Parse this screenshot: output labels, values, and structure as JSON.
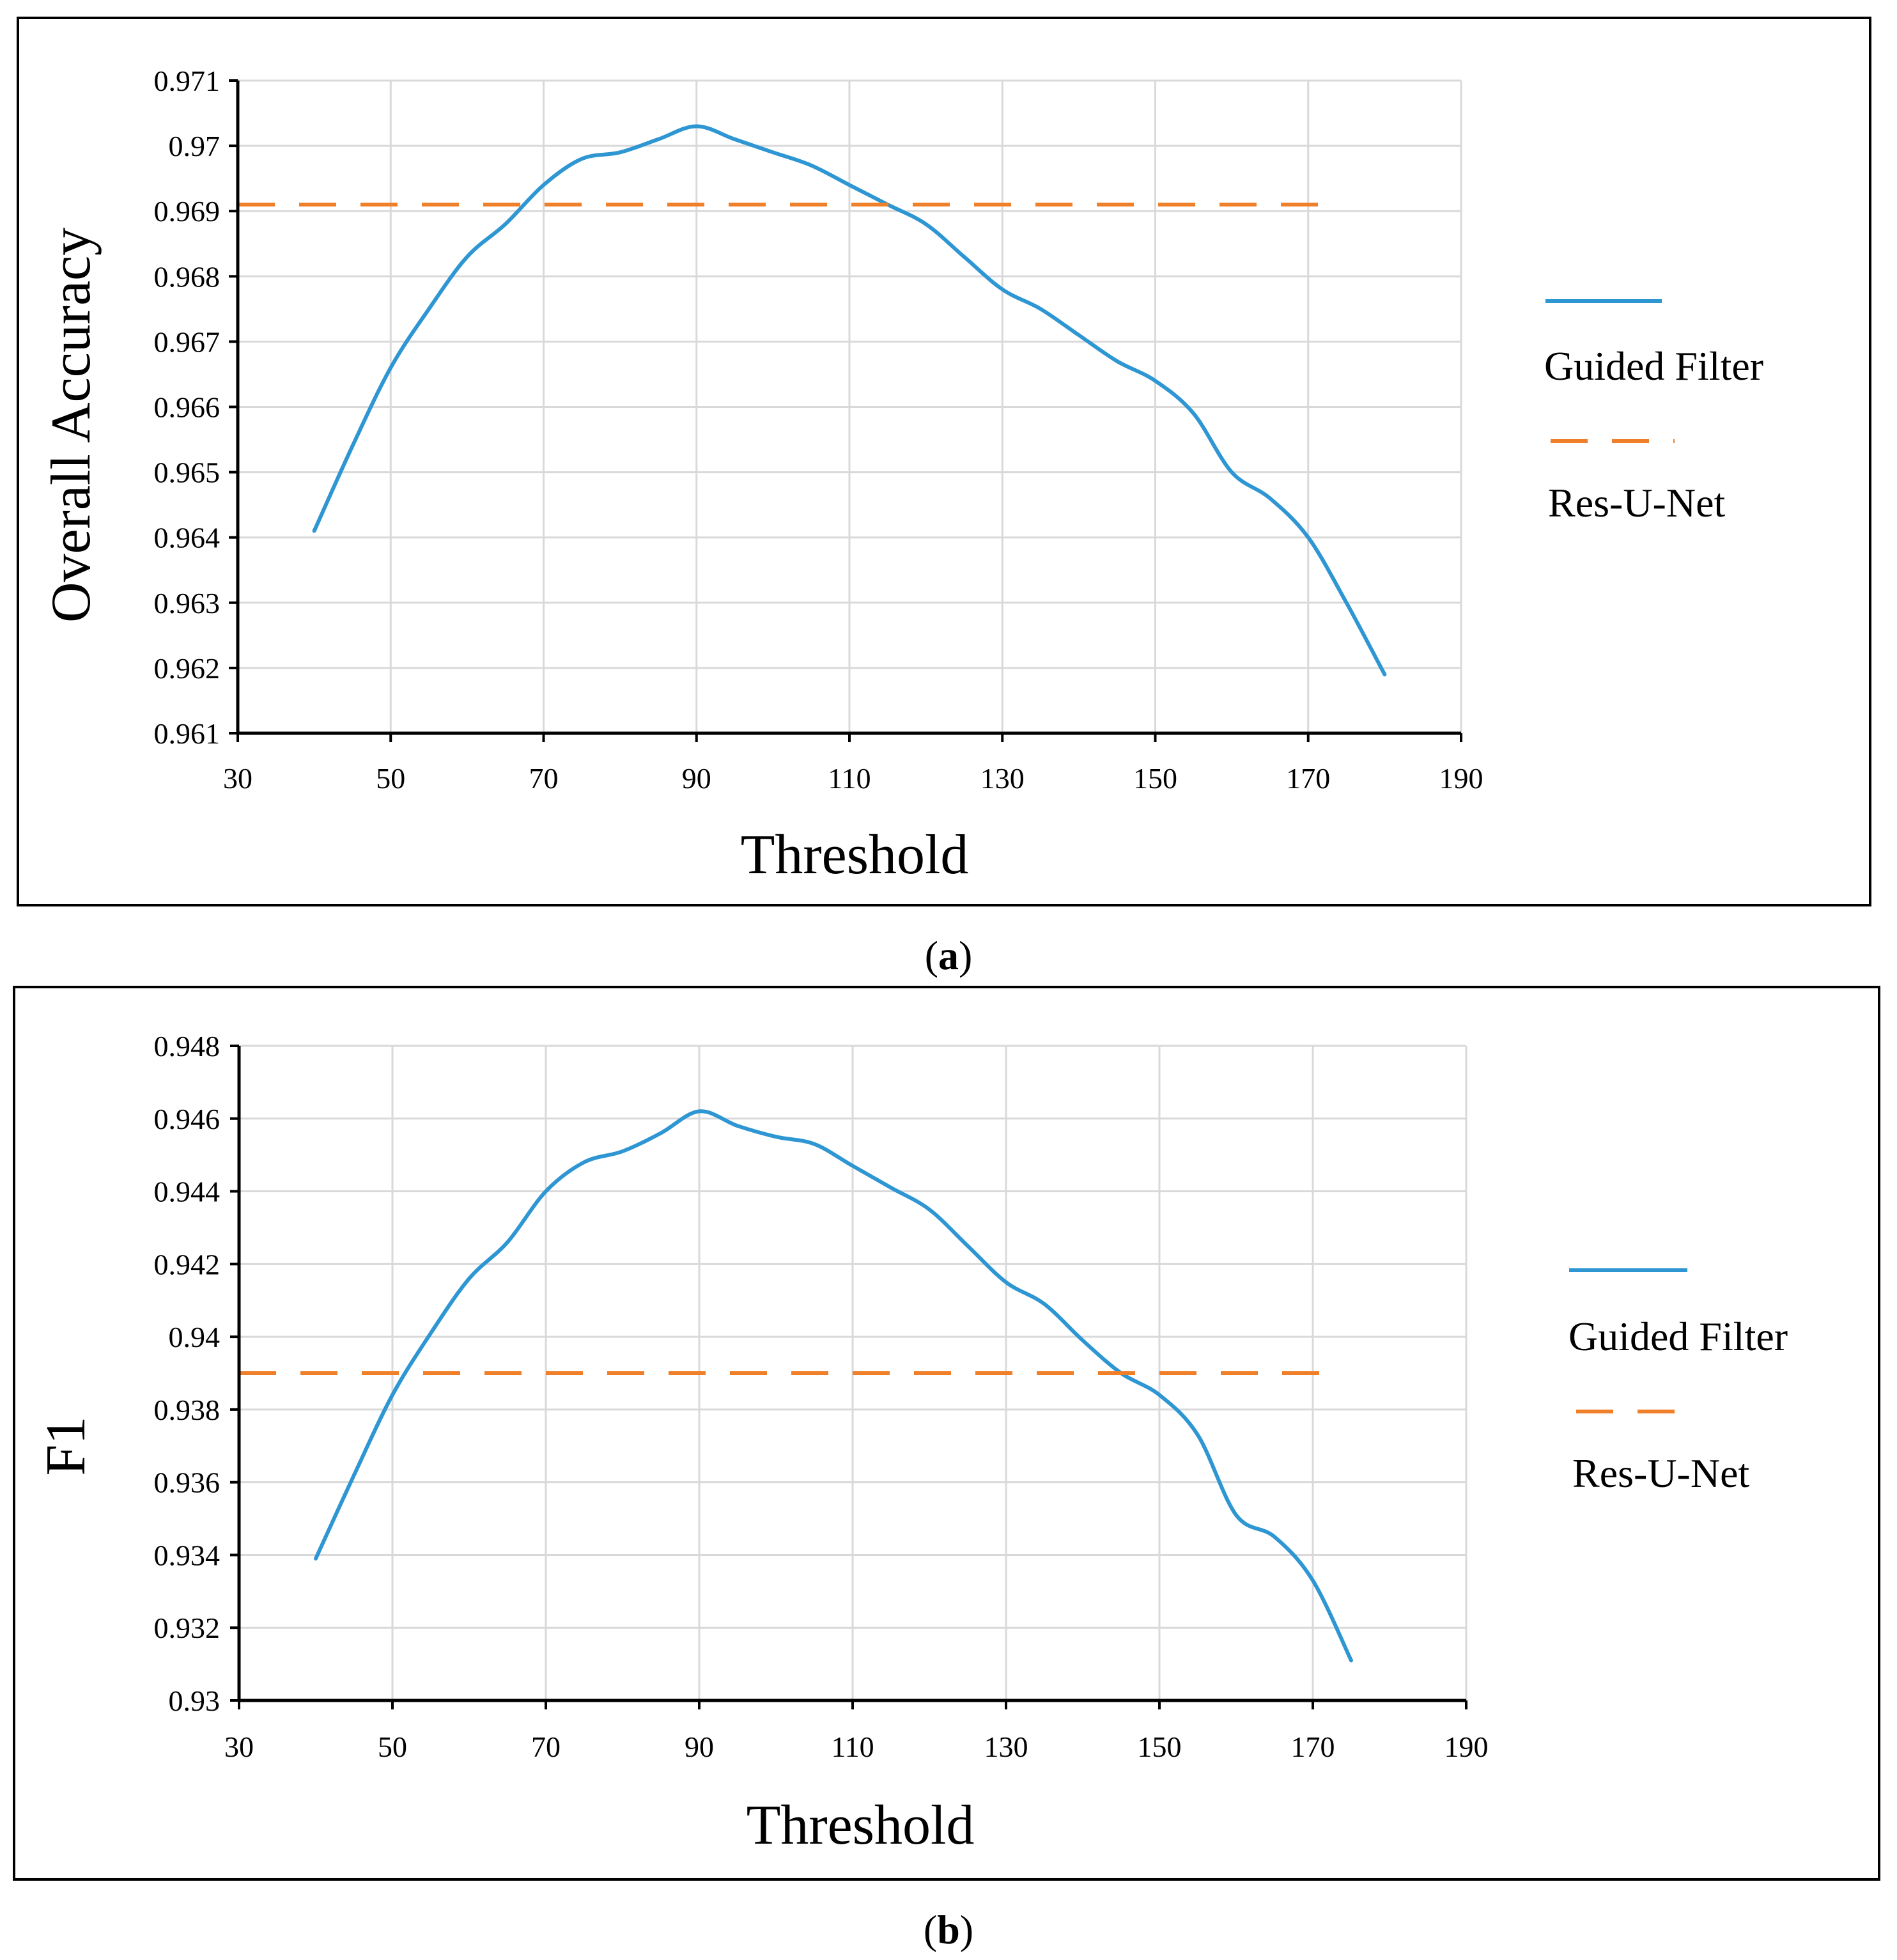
{
  "colors": {
    "series_guided": "#2e96d2",
    "series_resunet": "#f07f2a",
    "grid": "#d9d9d9",
    "axis": "#000000",
    "frame": "#000000"
  },
  "chart_data": [
    {
      "type": "line",
      "panel_label": "a",
      "xlabel": "Threshold",
      "ylabel": "Overall Accuracy",
      "xlim": [
        30,
        190
      ],
      "ylim": [
        0.961,
        0.971
      ],
      "xticks": [
        30,
        50,
        70,
        90,
        110,
        130,
        150,
        170,
        190
      ],
      "yticks": [
        0.961,
        0.962,
        0.963,
        0.964,
        0.965,
        0.966,
        0.967,
        0.968,
        0.969,
        0.97,
        0.971
      ],
      "ytick_labels": [
        "0.961",
        "0.962",
        "0.963",
        "0.964",
        "0.965",
        "0.966",
        "0.967",
        "0.968",
        "0.969",
        "0.97",
        "0.971"
      ],
      "grid": true,
      "legend_position": "right",
      "series": [
        {
          "name": "Guided Filter",
          "style": "solid",
          "x": [
            40,
            45,
            50,
            55,
            60,
            65,
            70,
            75,
            80,
            85,
            90,
            95,
            100,
            105,
            110,
            115,
            120,
            125,
            130,
            135,
            140,
            145,
            150,
            155,
            160,
            165,
            170,
            175,
            180
          ],
          "y": [
            0.9641,
            0.9654,
            0.9666,
            0.9675,
            0.9683,
            0.9688,
            0.9694,
            0.9698,
            0.9699,
            0.9701,
            0.9703,
            0.9701,
            0.9699,
            0.9697,
            0.9694,
            0.9691,
            0.9688,
            0.9683,
            0.9678,
            0.9675,
            0.9671,
            0.9667,
            0.9664,
            0.9659,
            0.965,
            0.9646,
            0.964,
            0.963,
            0.9619
          ]
        },
        {
          "name": "Res-U-Net",
          "style": "dashed",
          "x": [
            30,
            172
          ],
          "y": [
            0.9691,
            0.9691
          ]
        }
      ]
    },
    {
      "type": "line",
      "panel_label": "b",
      "xlabel": "Threshold",
      "ylabel": "F1",
      "xlim": [
        30,
        190
      ],
      "ylim": [
        0.93,
        0.948
      ],
      "xticks": [
        30,
        50,
        70,
        90,
        110,
        130,
        150,
        170,
        190
      ],
      "yticks": [
        0.93,
        0.932,
        0.934,
        0.936,
        0.938,
        0.94,
        0.942,
        0.944,
        0.946,
        0.948
      ],
      "ytick_labels": [
        "0.93",
        "0.932",
        "0.934",
        "0.936",
        "0.938",
        "0.94",
        "0.942",
        "0.944",
        "0.946",
        "0.948"
      ],
      "grid": true,
      "legend_position": "right",
      "series": [
        {
          "name": "Guided Filter",
          "style": "solid",
          "x": [
            40,
            45,
            50,
            55,
            60,
            65,
            70,
            75,
            80,
            85,
            90,
            95,
            100,
            105,
            110,
            115,
            120,
            125,
            130,
            135,
            140,
            145,
            150,
            155,
            160,
            165,
            170,
            175
          ],
          "y": [
            0.9339,
            0.9362,
            0.9384,
            0.9401,
            0.9416,
            0.9426,
            0.944,
            0.9448,
            0.9451,
            0.9456,
            0.9462,
            0.9458,
            0.9455,
            0.9453,
            0.9447,
            0.9441,
            0.9435,
            0.9425,
            0.9415,
            0.9409,
            0.9399,
            0.939,
            0.9384,
            0.9373,
            0.9351,
            0.9345,
            0.9333,
            0.9311
          ]
        },
        {
          "name": "Res-U-Net",
          "style": "dashed",
          "x": [
            30,
            172
          ],
          "y": [
            0.939,
            0.939
          ]
        }
      ]
    }
  ]
}
